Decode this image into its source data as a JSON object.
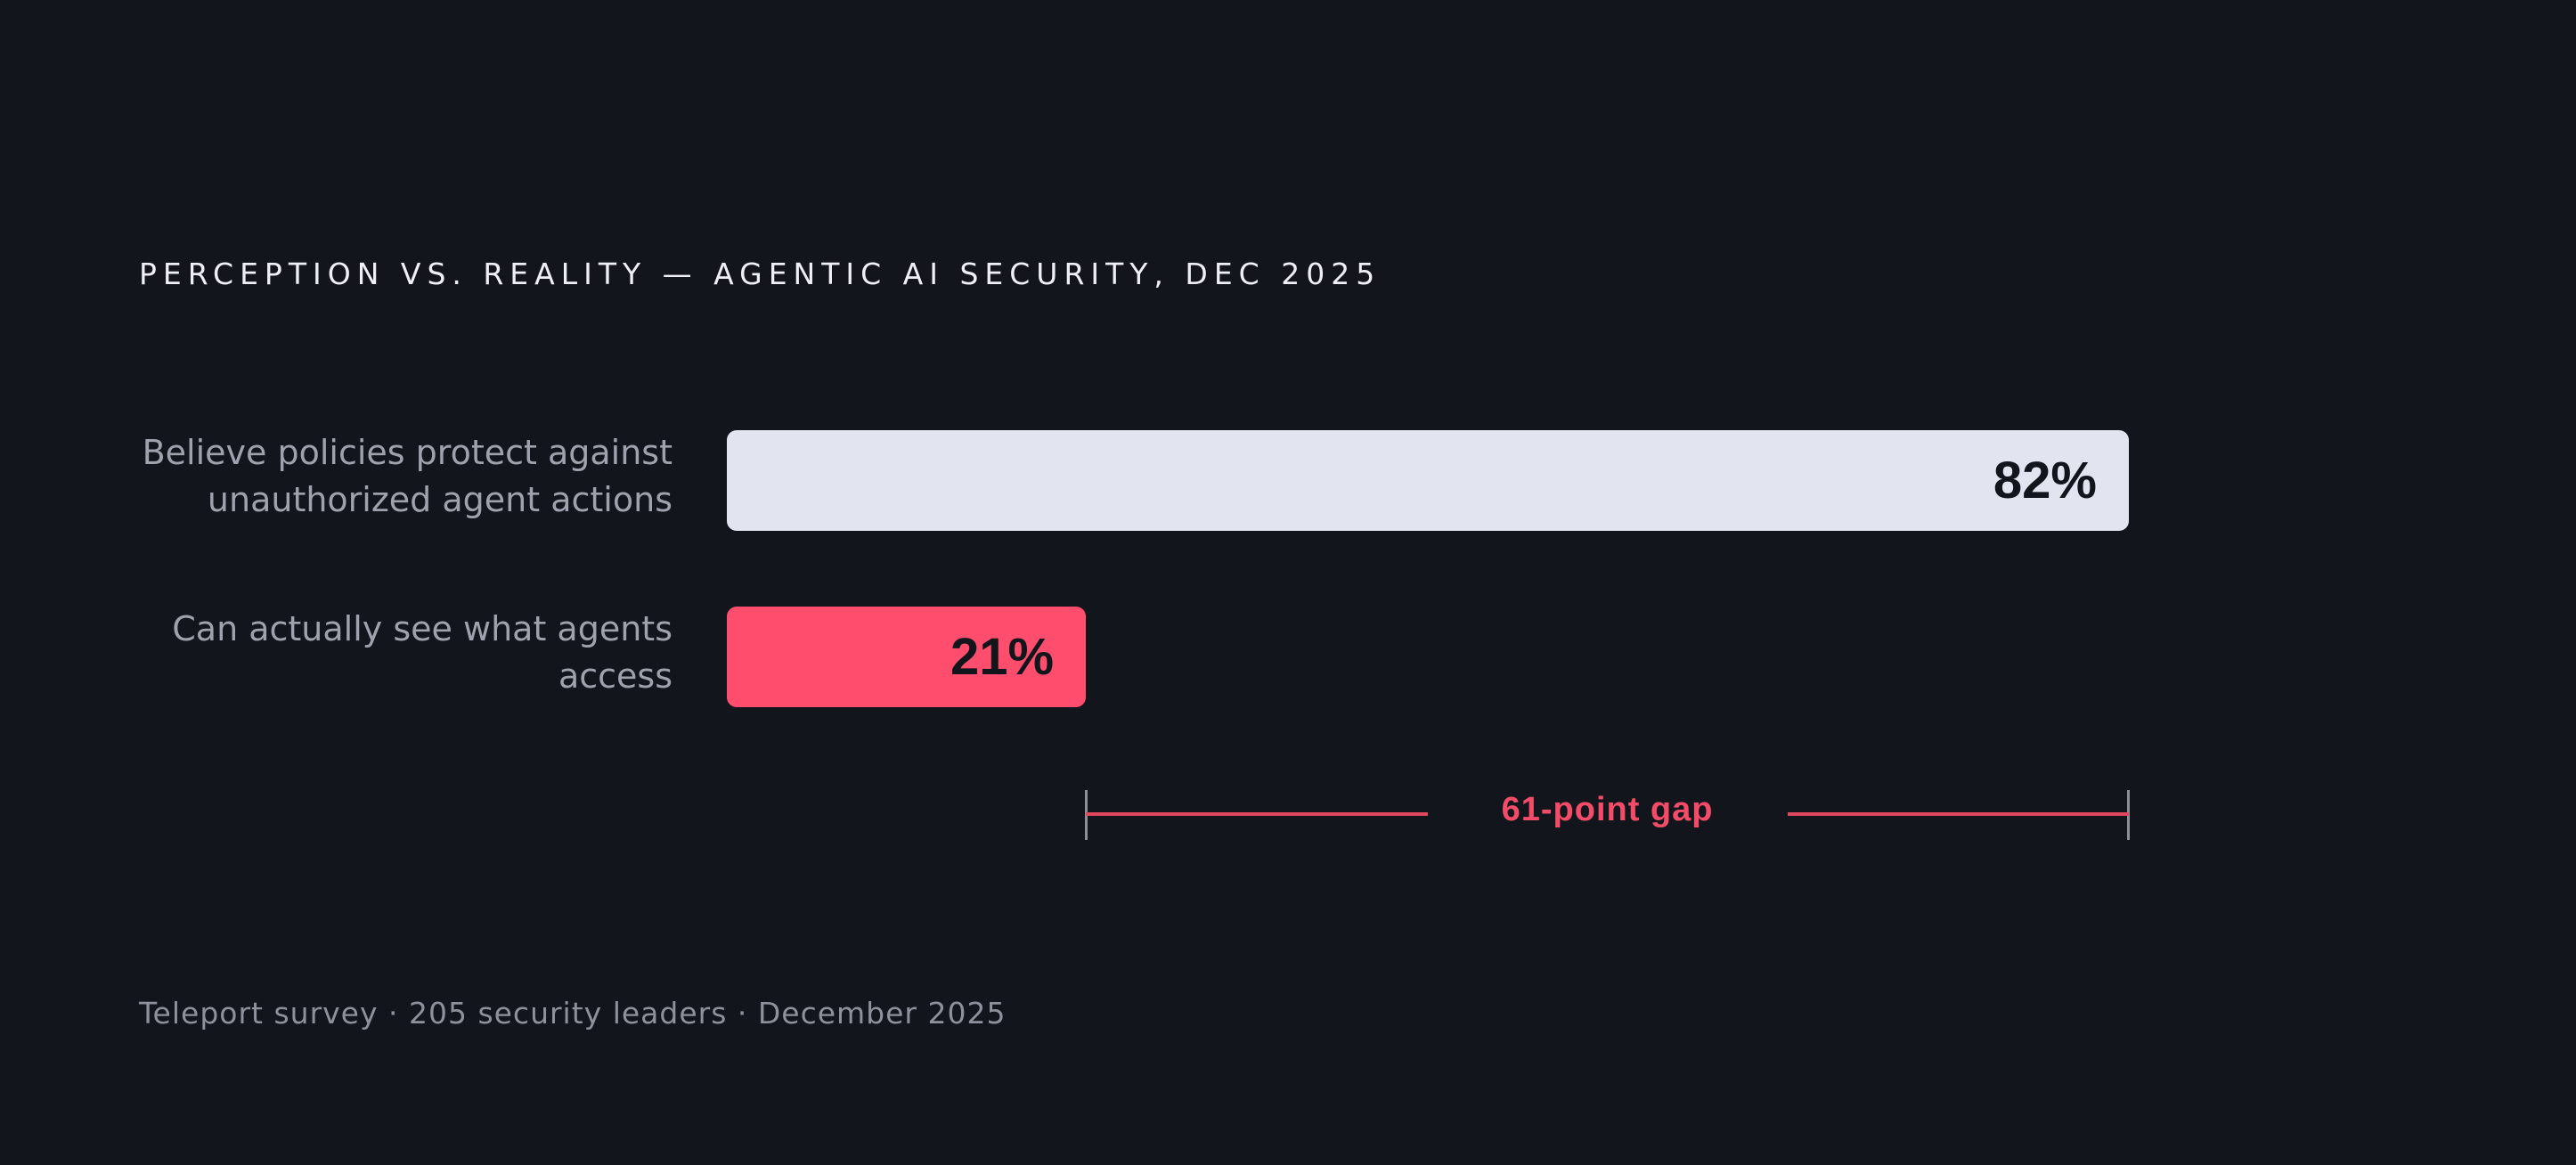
{
  "chart_data": {
    "type": "bar",
    "orientation": "horizontal",
    "title": "PERCEPTION VS. REALITY — AGENTIC AI SECURITY, DEC 2025",
    "categories": [
      "Believe policies protect against unauthorized agent actions",
      "Can actually see what agents access"
    ],
    "values": [
      82,
      21
    ],
    "value_labels": [
      "82%",
      "21%"
    ],
    "bar_colors": [
      "#e2e4f0",
      "#ff4d6d"
    ],
    "xlim": [
      0,
      100
    ],
    "grid": false,
    "annotation": {
      "label": "61-point gap",
      "from": 21,
      "to": 82,
      "color": "#e0475f"
    },
    "source": "Teleport survey · 205 security leaders · December 2025"
  }
}
